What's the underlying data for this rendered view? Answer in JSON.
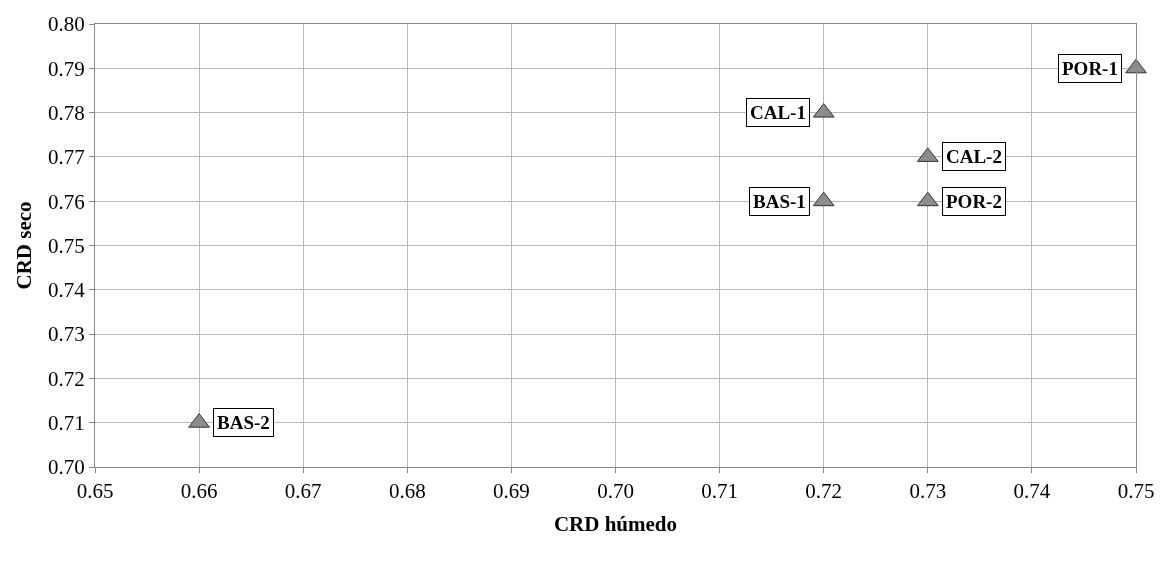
{
  "chart_data": {
    "type": "scatter",
    "xlabel": "CRD húmedo",
    "ylabel": "CRD seco",
    "x": [
      0.66,
      0.72,
      0.72,
      0.73,
      0.73,
      0.75
    ],
    "values": [
      0.71,
      0.78,
      0.76,
      0.77,
      0.76,
      0.79
    ],
    "color": "#8c8c8c",
    "marker": "triangle",
    "grid": true,
    "xlim": [
      0.65,
      0.75
    ],
    "xticks": [
      {
        "value": 0.65,
        "label": "0.65"
      },
      {
        "value": 0.66,
        "label": "0.66"
      },
      {
        "value": 0.67,
        "label": "0.67"
      },
      {
        "value": 0.68,
        "label": "0.68"
      },
      {
        "value": 0.69,
        "label": "0.69"
      },
      {
        "value": 0.7,
        "label": "0.70"
      },
      {
        "value": 0.71,
        "label": "0.71"
      },
      {
        "value": 0.72,
        "label": "0.72"
      },
      {
        "value": 0.73,
        "label": "0.73"
      },
      {
        "value": 0.74,
        "label": "0.74"
      },
      {
        "value": 0.75,
        "label": "0.75"
      }
    ],
    "ylim": [
      0.7,
      0.8
    ],
    "yticks": [
      {
        "value": 0.7,
        "label": "0.70"
      },
      {
        "value": 0.71,
        "label": "0.71"
      },
      {
        "value": 0.72,
        "label": "0.72"
      },
      {
        "value": 0.73,
        "label": "0.73"
      },
      {
        "value": 0.74,
        "label": "0.74"
      },
      {
        "value": 0.75,
        "label": "0.75"
      },
      {
        "value": 0.76,
        "label": "0.76"
      },
      {
        "value": 0.77,
        "label": "0.77"
      },
      {
        "value": 0.78,
        "label": "0.78"
      },
      {
        "value": 0.79,
        "label": "0.79"
      },
      {
        "value": 0.8,
        "label": "0.80"
      }
    ],
    "annotations": [
      {
        "text": "BAS-2",
        "x": 0.66,
        "y": 0.71
      },
      {
        "text": "CAL-1",
        "x": 0.72,
        "y": 0.78
      },
      {
        "text": "BAS-1",
        "x": 0.72,
        "y": 0.76
      },
      {
        "text": "CAL-2",
        "x": 0.73,
        "y": 0.77
      },
      {
        "text": "POR-2",
        "x": 0.73,
        "y": 0.76
      },
      {
        "text": "POR-1",
        "x": 0.75,
        "y": 0.79
      }
    ]
  }
}
